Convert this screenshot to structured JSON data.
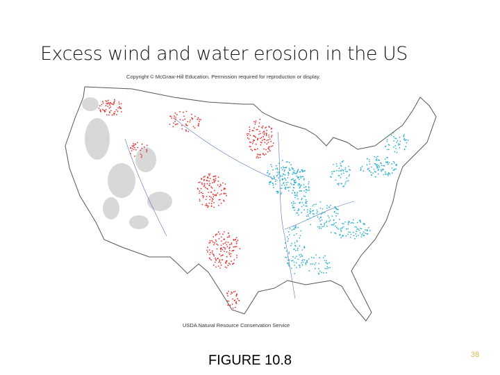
{
  "title": "Excess wind and water erosion in the US",
  "map": {
    "copyright": "Copyright © McGraw-Hill Education. Permission required for reproduction or display.",
    "source": "USDA Natural Resource Conservation Service"
  },
  "caption": "FIGURE 10.8",
  "page_number": "38"
}
